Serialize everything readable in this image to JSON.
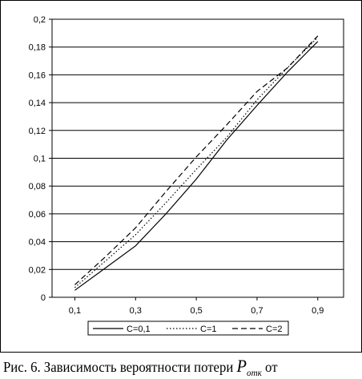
{
  "chart_data": {
    "type": "line",
    "title": "",
    "xlabel": "",
    "ylabel": "",
    "x": [
      0.1,
      0.2,
      0.3,
      0.4,
      0.5,
      0.6,
      0.7,
      0.8,
      0.9
    ],
    "x_ticks": [
      "0,1",
      "0,3",
      "0,5",
      "0,7",
      "0,9"
    ],
    "x_tick_values": [
      0.1,
      0.3,
      0.5,
      0.7,
      0.9
    ],
    "ylim": [
      0,
      0.2
    ],
    "y_ticks": [
      "0",
      "0,02",
      "0,04",
      "0,06",
      "0,08",
      "0,1",
      "0,12",
      "0,14",
      "0,16",
      "0,18",
      "0,2"
    ],
    "y_tick_values": [
      0,
      0.02,
      0.04,
      0.06,
      0.08,
      0.1,
      0.12,
      0.14,
      0.16,
      0.18,
      0.2
    ],
    "grid": "horizontal",
    "legend_position": "bottom",
    "series": [
      {
        "name": "C=0,1",
        "style": "solid",
        "color": "#000000",
        "values": [
          0.005,
          0.021,
          0.037,
          0.06,
          0.085,
          0.113,
          0.138,
          0.162,
          0.184
        ]
      },
      {
        "name": "C=1",
        "style": "dotted",
        "color": "#000000",
        "values": [
          0.007,
          0.026,
          0.045,
          0.068,
          0.092,
          0.115,
          0.142,
          0.165,
          0.187
        ]
      },
      {
        "name": "C=2",
        "style": "dashed",
        "color": "#000000",
        "values": [
          0.009,
          0.029,
          0.05,
          0.076,
          0.101,
          0.124,
          0.148,
          0.165,
          0.188
        ]
      }
    ]
  },
  "caption": {
    "prefix": "Рис. 6. Зависимость вероятности потери ",
    "symbol": "P",
    "subscript": "отк",
    "suffix": " от"
  }
}
